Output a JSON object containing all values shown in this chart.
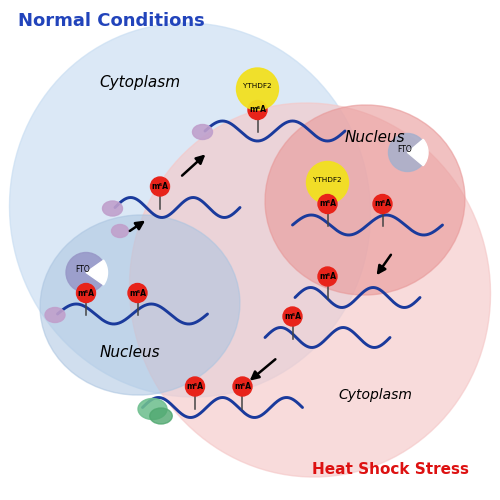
{
  "title_normal": "Normal Conditions",
  "title_heat": "Heat Shock Stress",
  "label_cytoplasm_blue": "Cytoplasm",
  "label_nucleus_blue": "Nucleus",
  "label_cytoplasm_red": "Cytoplasm",
  "label_nucleus_red": "Nucleus",
  "bg_color": "#ffffff",
  "blue_outer_color": "#c8ddf2",
  "blue_inner_color": "#aac4e0",
  "red_outer_color": "#f5c8c8",
  "red_inner_color": "#e89898",
  "m6a_red_color": "#e8231a",
  "m6a_stem_color": "#444444",
  "mrna_color": "#1a3a9c",
  "ribosome_color": "#c0a0cc",
  "fto_blue_color": "#9898c8",
  "fto_grey_color": "#a8b0cc",
  "ythdf2_color": "#f2e020",
  "normal_title_color": "#2244bb",
  "heat_title_color": "#dd1111",
  "green_ribosome1": "#70c090",
  "green_ribosome2": "#50a870"
}
